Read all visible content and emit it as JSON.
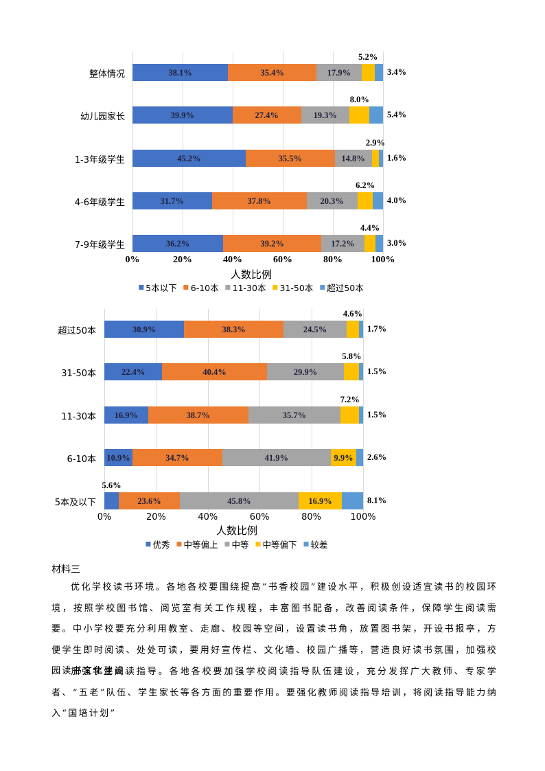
{
  "chart_data": [
    {
      "type": "bar",
      "orientation": "horizontal",
      "stacked": "percent",
      "title": "",
      "xlabel": "人数比例",
      "ylabel": "",
      "xlim": [
        0,
        100
      ],
      "x_ticks": [
        "0%",
        "20%",
        "40%",
        "60%",
        "80%",
        "100%"
      ],
      "grid": true,
      "legend_position": "bottom",
      "categories": [
        "整体情况",
        "幼儿园家长",
        "1-3年级学生",
        "4-6年级学生",
        "7-9年级学生"
      ],
      "series": [
        {
          "name": "5本以下",
          "color": "#4472c4",
          "values": [
            38.1,
            39.9,
            45.2,
            31.7,
            36.2
          ]
        },
        {
          "name": "6-10本",
          "color": "#ed7d31",
          "values": [
            35.4,
            27.4,
            35.5,
            37.8,
            39.2
          ]
        },
        {
          "name": "11-30本",
          "color": "#a5a5a5",
          "values": [
            17.9,
            19.3,
            14.8,
            20.3,
            17.2
          ]
        },
        {
          "name": "31-50本",
          "color": "#ffc000",
          "values": [
            5.2,
            8.0,
            2.9,
            6.2,
            4.4
          ]
        },
        {
          "name": "超过50本",
          "color": "#5b9bd5",
          "values": [
            3.4,
            5.4,
            1.6,
            4.0,
            3.0
          ]
        }
      ],
      "rows": [
        {
          "label": "整体情况",
          "labels": [
            "38.1%",
            "35.4%",
            "17.9%",
            "5.2%",
            "3.4%"
          ]
        },
        {
          "label": "幼儿园家长",
          "labels": [
            "39.9%",
            "27.4%",
            "19.3%",
            "8.0%",
            "5.4%"
          ]
        },
        {
          "label": "1-3年级学生",
          "labels": [
            "45.2%",
            "35.5%",
            "14.8%",
            "2.9%",
            "1.6%"
          ]
        },
        {
          "label": "4-6年级学生",
          "labels": [
            "31.7%",
            "37.8%",
            "20.3%",
            "6.2%",
            "4.0%"
          ]
        },
        {
          "label": "7-9年级学生",
          "labels": [
            "36.2%",
            "39.2%",
            "17.2%",
            "4.4%",
            "3.0%"
          ]
        }
      ],
      "legend": [
        "5本以下",
        "6-10本",
        "11-30本",
        "31-50本",
        "超过50本"
      ]
    },
    {
      "type": "bar",
      "orientation": "horizontal",
      "stacked": "percent",
      "title": "",
      "xlabel": "人数比例",
      "ylabel": "",
      "xlim": [
        0,
        100
      ],
      "x_ticks": [
        "0%",
        "20%",
        "40%",
        "60%",
        "80%",
        "100%"
      ],
      "grid": true,
      "legend_position": "bottom",
      "categories": [
        "超过50本",
        "31-50本",
        "11-30本",
        "6-10本",
        "5本及以下"
      ],
      "series": [
        {
          "name": "优秀",
          "color": "#4472c4",
          "values": [
            30.9,
            22.4,
            16.9,
            10.9,
            5.6
          ]
        },
        {
          "name": "中等偏上",
          "color": "#ed7d31",
          "values": [
            38.3,
            40.4,
            38.7,
            34.7,
            23.6
          ]
        },
        {
          "name": "中等",
          "color": "#a5a5a5",
          "values": [
            24.5,
            29.9,
            35.7,
            41.9,
            45.8
          ]
        },
        {
          "name": "中等偏下",
          "color": "#ffc000",
          "values": [
            4.6,
            5.8,
            7.2,
            9.9,
            16.9
          ]
        },
        {
          "name": "较差",
          "color": "#5b9bd5",
          "values": [
            1.7,
            1.5,
            1.5,
            2.6,
            8.1
          ]
        }
      ],
      "rows": [
        {
          "label": "超过50本",
          "labels": [
            "30.9%",
            "38.3%",
            "24.5%",
            "4.6%",
            "1.7%"
          ]
        },
        {
          "label": "31-50本",
          "labels": [
            "22.4%",
            "40.4%",
            "29.9%",
            "5.8%",
            "1.5%"
          ]
        },
        {
          "label": "11-30本",
          "labels": [
            "16.9%",
            "38.7%",
            "35.7%",
            "7.2%",
            "1.5%"
          ]
        },
        {
          "label": "6-10本",
          "labels": [
            "10.9%",
            "34.7%",
            "41.9%",
            "9.9%",
            "2.6%"
          ]
        },
        {
          "label": "5本及以下",
          "labels": [
            "5.6%",
            "23.6%",
            "45.8%",
            "16.9%",
            "8.1%"
          ]
        }
      ],
      "legend": [
        "优秀",
        "中等偏上",
        "中等",
        "中等偏下",
        "较差"
      ]
    }
  ],
  "document": {
    "heading": "材料三",
    "paragraphs": [
      "优化学校读书环境。各地各校要围绕提高“书香校园”建设水平，积极创设适宜读书的校园环境，按照学校图书馆、阅览室有关工作规程，丰富图书配备，改善阅读条件，保障学生阅读需要。中小学校要充分利用教室、走廊、校园等空间，设置读书角，放置图书架，开设书报亭，方便学生即时阅读、处处可读，要用好宣传栏、文化墙、校园广播等，营造良好读书氛围，加强校园读书文化建设。",
      "加强学生阅读指导。各地各校要加强学校阅读指导队伍建设，充分发挥广大教师、专家学者、“五老”队伍、学生家长等各方面的重要作用。要强化教师阅读指导培训，将阅读指导能力纳入“国培计划”"
    ]
  }
}
